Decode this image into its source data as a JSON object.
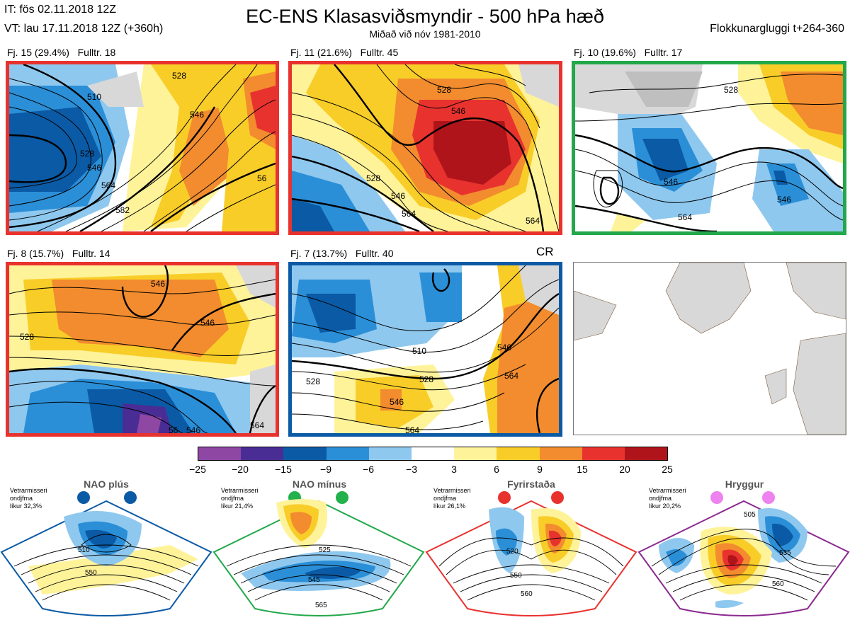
{
  "header": {
    "it_line": "IT: fös 02.11.2018 12Z",
    "vt_line": "VT: lau 17.11.2018 12Z  (+360h)",
    "title": "EC-ENS Klasasviðsmyndir - 500 hPa hæð",
    "subtitle": "Miðað við nóv 1981-2010",
    "window": "Flokkunargluggi t+264-360"
  },
  "clusters": [
    {
      "label": "Fj. 15 (29.4%)",
      "members": "Fulltr. 18",
      "border_color": "#e8322e"
    },
    {
      "label": "Fj. 11 (21.6%)",
      "members": "Fulltr. 45",
      "border_color": "#e8322e"
    },
    {
      "label": "Fj. 10 (19.6%)",
      "members": "Fulltr. 17",
      "border_color": "#22a84a"
    },
    {
      "label": "Fj. 8 (15.7%)",
      "members": "Fulltr. 14",
      "border_color": "#e8322e"
    },
    {
      "label": "Fj. 7 (13.7%)",
      "members": "Fulltr. 40",
      "border_color": "#0b5aa5",
      "tag": "CR"
    }
  ],
  "contour_labels": {
    "c15": [
      "510",
      "528",
      "546",
      "564",
      "582",
      "546",
      "528",
      "56"
    ],
    "c11": [
      "528",
      "546",
      "564",
      "528",
      "546",
      "564"
    ],
    "c10": [
      "546",
      "564",
      "546",
      "528"
    ],
    "c8": [
      "546",
      "546",
      "528",
      "546",
      "56",
      "564"
    ],
    "c7": [
      "510",
      "528",
      "546",
      "546",
      "564",
      "528",
      "564"
    ]
  },
  "colorbar": {
    "ticks": [
      "−25",
      "−20",
      "−15",
      "−9",
      "−6",
      "−3",
      "3",
      "6",
      "9",
      "15",
      "20",
      "25"
    ],
    "colors": [
      "#8e47a3",
      "#4a2c95",
      "#0b5aa5",
      "#2b8fd8",
      "#8fc8ee",
      "#ffffff",
      "#fff39a",
      "#f9cd28",
      "#f28c2e",
      "#e8322e",
      "#b0141b"
    ]
  },
  "regimes": [
    {
      "name": "NAO plús",
      "prob": "Vetrarmisseri\nondjfma\nlíkur 32,3%",
      "dot_color": "#0b5aa5",
      "border_color": "#0b5aa5",
      "labels": [
        "510",
        "550"
      ]
    },
    {
      "name": "NAO mínus",
      "prob": "Vetrarmisseri\nondjfma\nlíkur 21,4%",
      "dot_color": "#22b14c",
      "border_color": "#22a84a",
      "labels": [
        "525",
        "545",
        "565"
      ]
    },
    {
      "name": "Fyrirstaða",
      "prob": "Vetrarmisseri\nondjfma\nlíkur 26,1%",
      "dot_color": "#e8322e",
      "border_color": "#e8322e",
      "labels": [
        "520",
        "550",
        "560"
      ]
    },
    {
      "name": "Hryggur",
      "prob": "Vetrarmisseri\nondjfma\nlíkur 20,2%",
      "dot_color": "#ee82ee",
      "border_color": "#8b2a8f",
      "labels": [
        "505",
        "535",
        "560"
      ]
    }
  ]
}
